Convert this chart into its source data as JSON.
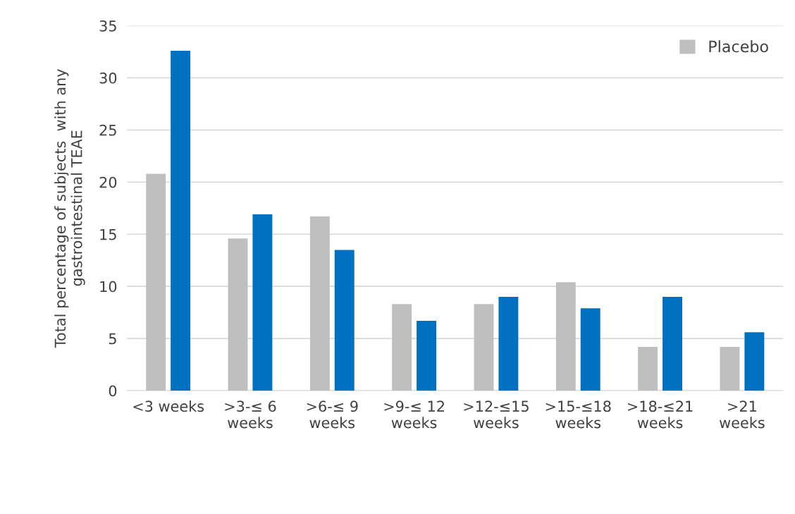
{
  "chart_data": {
    "type": "bar",
    "ylabel": "Total percentage of subjects  with any\ngastrointestinal TEAE",
    "categories": [
      "<3 weeks",
      ">3-≤ 6\nweeks",
      ">6-≤ 9\nweeks",
      ">9-≤ 12\nweeks",
      ">12-≤15\nweeks",
      ">15-≤18\nweeks",
      ">18-≤21\nweeks",
      ">21\nweeks"
    ],
    "series": [
      {
        "name": "Placebo",
        "color": "#bfbfbf",
        "values": [
          20.8,
          14.6,
          16.7,
          8.3,
          8.3,
          10.4,
          4.2,
          4.2
        ]
      },
      {
        "color": "#0070c0",
        "values": [
          32.6,
          16.9,
          13.5,
          6.7,
          9.0,
          7.9,
          9.0,
          5.6
        ]
      }
    ],
    "ylim": [
      0,
      35
    ],
    "yticks": [
      0,
      5,
      10,
      15,
      20,
      25,
      30,
      35
    ],
    "grid": "y",
    "legend": "upper right"
  }
}
